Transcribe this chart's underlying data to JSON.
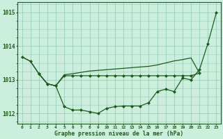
{
  "title": "Graphe pression niveau de la mer (hPa)",
  "background_color": "#cceedd",
  "grid_color": "#99ccbb",
  "line_color": "#1a5c1a",
  "x_labels": [
    "0",
    "1",
    "2",
    "3",
    "4",
    "5",
    "6",
    "7",
    "8",
    "9",
    "10",
    "11",
    "12",
    "13",
    "14",
    "15",
    "16",
    "17",
    "18",
    "19",
    "20",
    "21",
    "22",
    "23"
  ],
  "series1_x": [
    0,
    1,
    2,
    3,
    4,
    5,
    6,
    7,
    8,
    9,
    10,
    11,
    12,
    13,
    14,
    15,
    16,
    17,
    18,
    19,
    20,
    21,
    22,
    23
  ],
  "series1_y": [
    1013.68,
    1013.55,
    1013.18,
    1012.88,
    1012.82,
    1012.2,
    1012.1,
    1012.1,
    1012.05,
    1012.0,
    1012.15,
    1012.2,
    1012.22,
    1012.22,
    1012.22,
    1012.32,
    1012.65,
    1012.72,
    1012.65,
    1013.05,
    1013.0,
    1013.3,
    1014.08,
    1015.0
  ],
  "series2_x": [
    2,
    3,
    4,
    5,
    6,
    7,
    8,
    9,
    10,
    11,
    12,
    13,
    14,
    15,
    16,
    17,
    18,
    19,
    20,
    21
  ],
  "series2_y": [
    1013.18,
    1012.88,
    1012.82,
    1013.12,
    1013.12,
    1013.12,
    1013.12,
    1013.12,
    1013.12,
    1013.12,
    1013.12,
    1013.12,
    1013.12,
    1013.12,
    1013.12,
    1013.12,
    1013.12,
    1013.12,
    1013.12,
    1013.2
  ],
  "series3_x": [
    0,
    1,
    2,
    3,
    4,
    5,
    6,
    7,
    8,
    9,
    10,
    11,
    12,
    13,
    14,
    15,
    16,
    17,
    18,
    19,
    20,
    21
  ],
  "series3_y": [
    1013.68,
    1013.55,
    1013.18,
    1012.88,
    1012.82,
    1013.15,
    1013.18,
    1013.22,
    1013.26,
    1013.28,
    1013.3,
    1013.32,
    1013.34,
    1013.36,
    1013.38,
    1013.4,
    1013.44,
    1013.5,
    1013.56,
    1013.6,
    1013.65,
    1013.2
  ],
  "ylim": [
    1011.7,
    1015.3
  ],
  "yticks": [
    1012,
    1013,
    1014,
    1015
  ]
}
